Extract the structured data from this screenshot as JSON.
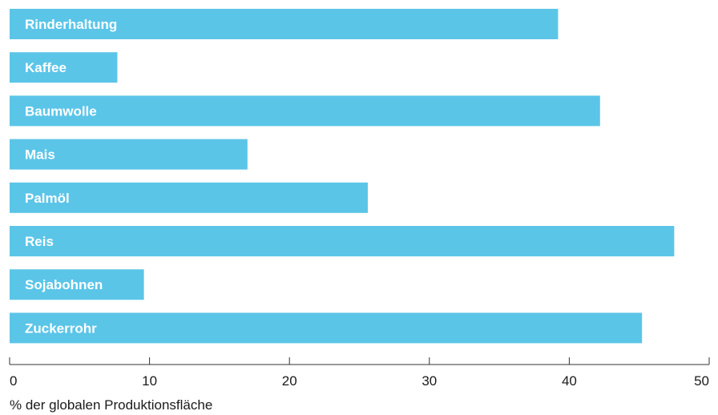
{
  "chart_data": {
    "type": "bar",
    "orientation": "horizontal",
    "categories": [
      "Rinderhaltung",
      "Kaffee",
      "Baumwolle",
      "Mais",
      "Palmöl",
      "Reis",
      "Sojabohnen",
      "Zuckerrohr"
    ],
    "values": [
      39.2,
      7.7,
      42.2,
      17.0,
      25.6,
      47.5,
      9.6,
      45.2
    ],
    "xlabel": "% der globalen Produktionsfläche",
    "ylabel": "",
    "xlim": [
      0,
      50
    ],
    "xticks": [
      0,
      10,
      20,
      30,
      40,
      50
    ],
    "tick_labels": [
      "0",
      "10",
      "20",
      "30",
      "40",
      "50"
    ],
    "grid": false,
    "bar_color": "#5bc5e8",
    "axis_color": "#333333"
  }
}
